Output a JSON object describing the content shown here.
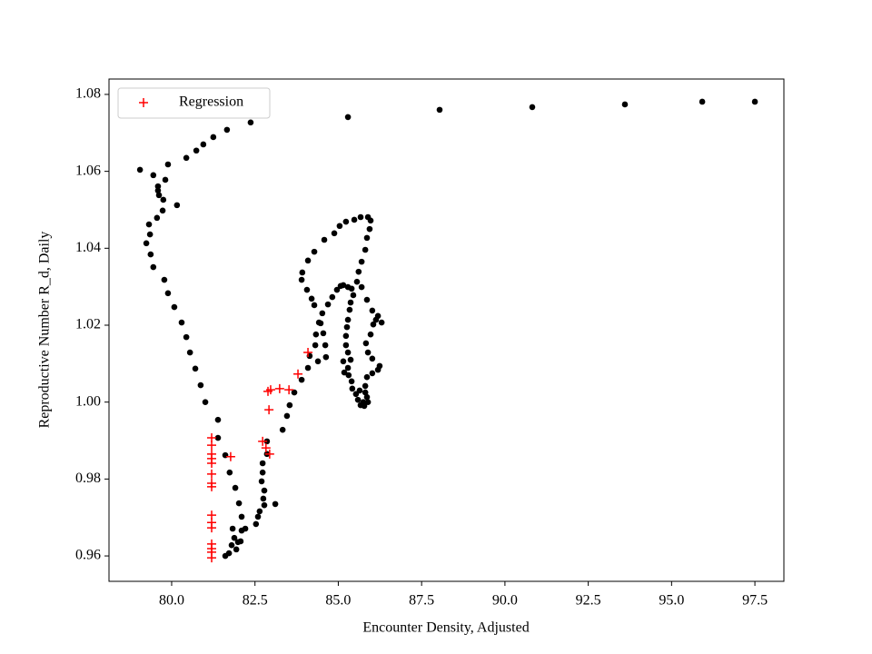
{
  "chart_data": {
    "type": "scatter",
    "xlabel": "Encounter Density, Adjusted",
    "ylabel": "Reproductive Number R_d, Daily",
    "xlim": [
      78.12,
      98.37
    ],
    "ylim": [
      0.9534,
      1.084
    ],
    "xticks": [
      {
        "value": 80,
        "label": "80.0"
      },
      82.5,
      {
        "value": 85,
        "label": "85.0"
      },
      87.5,
      {
        "value": 90,
        "label": "90.0"
      },
      92.5,
      {
        "value": 95,
        "label": "95.0"
      },
      97.5
    ],
    "yticks": [
      0.96,
      0.98,
      {
        "value": 1,
        "label": "1.00"
      },
      1.02,
      1.04,
      1.06,
      1.08
    ],
    "legend": "upper left",
    "series": [
      {
        "color": "#000000",
        "marker": "o",
        "x": [
          97.5,
          95.92,
          93.6,
          90.82,
          88.04,
          85.29,
          82.37,
          81.66,
          81.25,
          80.95,
          80.74,
          80.44,
          79.89,
          79.05,
          79.45,
          79.81,
          79.59,
          79.59,
          79.62,
          79.75,
          80.16,
          79.73,
          79.56,
          79.32,
          79.35,
          79.24,
          79.37,
          79.45,
          79.78,
          79.89,
          80.08,
          80.3,
          80.44,
          80.55,
          80.71,
          80.87,
          81.01,
          81.39,
          81.39,
          81.61,
          81.74,
          81.91,
          82.02,
          82.1,
          81.83,
          82.1,
          81.88,
          81.99,
          81.8,
          82.07,
          81.94,
          81.72,
          81.61,
          82.21,
          82.53,
          82.59,
          82.64,
          82.78,
          82.75,
          82.78,
          82.7,
          82.73,
          82.73,
          82.86,
          82.86,
          83.11,
          83.33,
          83.46,
          83.54,
          83.68,
          83.9,
          84.09,
          84.14,
          84.31,
          84.33,
          84.47,
          84.52,
          84.69,
          84.82,
          84.96,
          85.07,
          85.15,
          85.29,
          85.4,
          85.45,
          85.37,
          85.34,
          85.29,
          85.26,
          85.23,
          85.23,
          85.29,
          85.37,
          85.29,
          85.31,
          85.4,
          85.42,
          85.53,
          85.59,
          85.67,
          85.78,
          85.89,
          85.86,
          85.81,
          85.81,
          85.86,
          86.02,
          86.19,
          86.24,
          86.02,
          85.89,
          85.83,
          85.97,
          86.05,
          86.13,
          86.02,
          85.86,
          85.7,
          85.56,
          85.61,
          85.7,
          85.81,
          85.86,
          85.94,
          85.97,
          85.89,
          85.67,
          85.48,
          85.23,
          85.04,
          84.88,
          84.58,
          84.28,
          84.09,
          83.92,
          83.9,
          84.06,
          84.2,
          84.28,
          84.42,
          84.55,
          84.61,
          84.63,
          84.39,
          86.3,
          86.19,
          85.75,
          85.64,
          85.15,
          85.18
        ],
        "values": [
          1.0781,
          1.0781,
          1.0774,
          1.0767,
          1.076,
          1.0741,
          1.0727,
          1.0708,
          1.0689,
          1.067,
          1.0654,
          1.0635,
          1.0618,
          1.0604,
          1.059,
          1.0578,
          1.0561,
          1.055,
          1.0538,
          1.0526,
          1.0512,
          1.0498,
          1.0479,
          1.0462,
          1.0436,
          1.0413,
          1.0384,
          1.0351,
          1.0318,
          1.0283,
          1.0247,
          1.0207,
          1.0169,
          1.0129,
          1.0087,
          1.0044,
          1.0,
          0.9954,
          0.9907,
          0.9862,
          0.9817,
          0.9777,
          0.9737,
          0.9702,
          0.9671,
          0.9666,
          0.9647,
          0.9636,
          0.9628,
          0.9638,
          0.9617,
          0.9607,
          0.96,
          0.9671,
          0.9683,
          0.9702,
          0.9716,
          0.9732,
          0.9749,
          0.977,
          0.9794,
          0.9817,
          0.9841,
          0.9865,
          0.9898,
          0.9735,
          0.9928,
          0.9964,
          0.9992,
          1.0025,
          1.0058,
          1.0089,
          1.012,
          1.0148,
          1.0176,
          1.0205,
          1.0231,
          1.0254,
          1.0273,
          1.0292,
          1.0302,
          1.0304,
          1.0299,
          1.0295,
          1.0278,
          1.0259,
          1.024,
          1.0214,
          1.0195,
          1.0172,
          1.0148,
          1.0129,
          1.011,
          1.0089,
          1.007,
          1.0054,
          1.0035,
          1.0021,
          1.0006,
          0.9992,
          0.999,
          1.0,
          1.0013,
          1.0025,
          1.0042,
          1.0065,
          1.0075,
          1.0084,
          1.0094,
          1.0113,
          1.0129,
          1.0153,
          1.0176,
          1.0202,
          1.0214,
          1.0238,
          1.0266,
          1.0299,
          1.0313,
          1.0339,
          1.0365,
          1.0396,
          1.0427,
          1.045,
          1.0472,
          1.0481,
          1.0481,
          1.0474,
          1.0469,
          1.0458,
          1.0439,
          1.0422,
          1.0391,
          1.0368,
          1.0337,
          1.0318,
          1.0292,
          1.0269,
          1.0252,
          1.0207,
          1.0179,
          1.0148,
          1.0117,
          1.0106,
          1.0207,
          1.0224,
          1.0,
          1.003,
          1.0106,
          1.0077
        ]
      },
      {
        "name": "Regression",
        "color": "#ff0000",
        "marker": "+",
        "x": [
          81.2,
          81.2,
          81.2,
          81.2,
          81.2,
          81.2,
          81.2,
          81.2,
          81.2,
          81.2,
          81.2,
          81.2,
          81.2,
          81.2,
          81.2,
          81.77,
          82.73,
          82.83,
          82.94,
          82.92,
          82.89,
          82.97,
          83.24,
          83.52,
          83.79,
          84.09
        ],
        "values": [
          0.9907,
          0.9888,
          0.9865,
          0.9853,
          0.9841,
          0.9813,
          0.9789,
          0.978,
          0.9706,
          0.9687,
          0.9673,
          0.9631,
          0.9619,
          0.961,
          0.9595,
          0.9858,
          0.9898,
          0.9881,
          0.9865,
          0.998,
          1.0028,
          1.0032,
          1.0035,
          1.0032,
          1.0073,
          1.0129
        ]
      }
    ]
  }
}
